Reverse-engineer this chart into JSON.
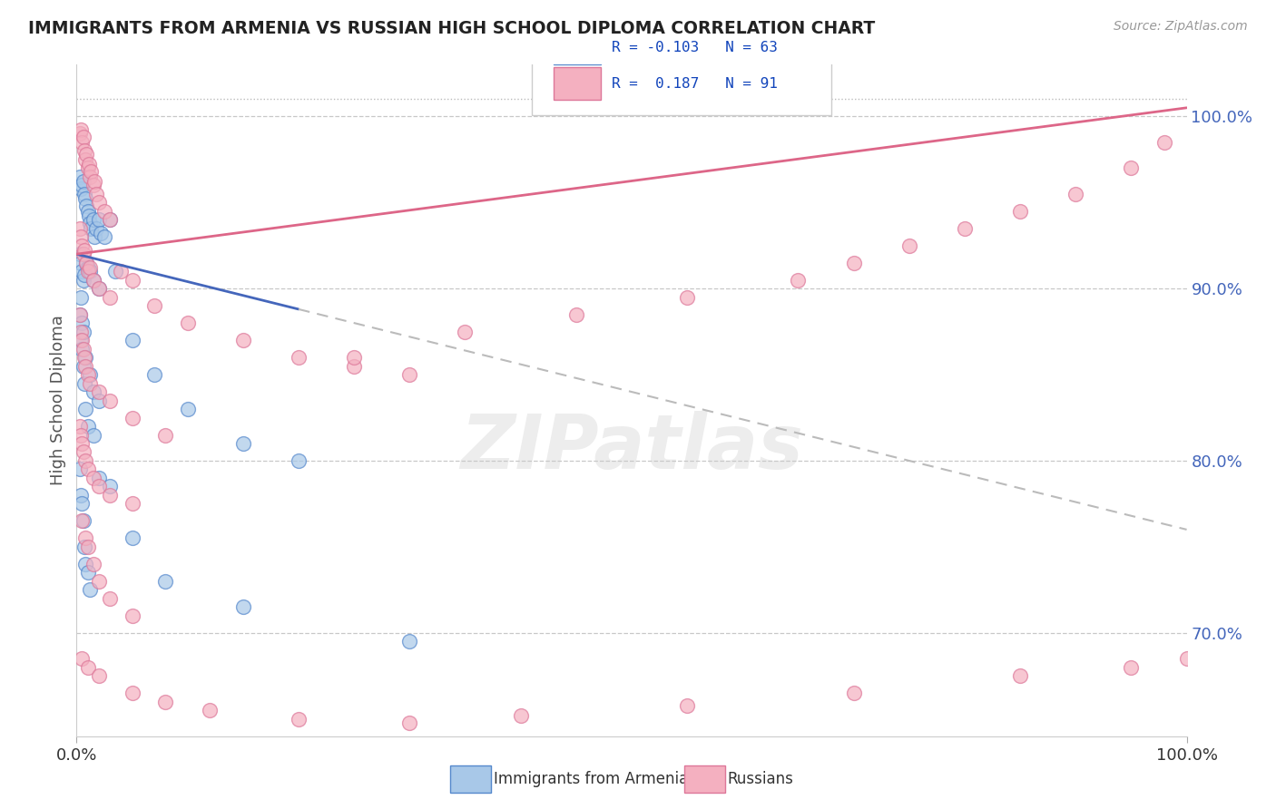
{
  "title": "IMMIGRANTS FROM ARMENIA VS RUSSIAN HIGH SCHOOL DIPLOMA CORRELATION CHART",
  "source": "Source: ZipAtlas.com",
  "ylabel": "High School Diploma",
  "color_blue": "#a8c8e8",
  "color_pink": "#f4b0c0",
  "color_blue_edge": "#5588cc",
  "color_pink_edge": "#dd7799",
  "color_blue_line": "#4466bb",
  "color_pink_line": "#dd6688",
  "color_dashed": "#bbbbbb",
  "watermark": "ZIPatlas",
  "y_ticks": [
    70,
    80,
    90,
    100
  ],
  "y_tick_labels": [
    "70.0%",
    "80.0%",
    "90.0%",
    "100.0%"
  ],
  "legend_text1": "R = -0.103   N = 63",
  "legend_text2": "R =  0.187   N = 91",
  "blue_scatter_x": [
    0.3,
    0.4,
    0.5,
    0.6,
    0.7,
    0.8,
    0.9,
    1.0,
    1.1,
    1.2,
    1.3,
    1.5,
    1.6,
    1.8,
    2.0,
    2.2,
    2.5,
    3.0,
    0.3,
    0.4,
    0.5,
    0.6,
    0.7,
    0.9,
    1.0,
    1.2,
    1.5,
    2.0,
    0.3,
    0.4,
    0.5,
    0.6,
    0.7,
    0.8,
    1.0,
    0.4,
    0.5,
    0.6,
    0.8,
    1.2,
    1.5,
    2.0,
    3.5,
    5.0,
    7.0,
    10.0,
    15.0,
    20.0,
    0.3,
    0.4,
    0.5,
    0.6,
    0.7,
    0.8,
    1.0,
    1.2,
    1.5,
    2.0,
    3.0,
    5.0,
    8.0,
    15.0,
    30.0
  ],
  "blue_scatter_y": [
    96.5,
    95.8,
    96.0,
    96.2,
    95.5,
    95.2,
    94.8,
    94.5,
    94.2,
    93.8,
    93.5,
    94.0,
    93.0,
    93.5,
    94.0,
    93.2,
    93.0,
    94.0,
    92.0,
    91.5,
    91.0,
    90.5,
    90.8,
    91.5,
    91.2,
    91.0,
    90.5,
    90.0,
    88.5,
    87.0,
    86.5,
    85.5,
    84.5,
    83.0,
    82.0,
    89.5,
    88.0,
    87.5,
    86.0,
    85.0,
    84.0,
    83.5,
    91.0,
    87.0,
    85.0,
    83.0,
    81.0,
    80.0,
    79.5,
    78.0,
    77.5,
    76.5,
    75.0,
    74.0,
    73.5,
    72.5,
    81.5,
    79.0,
    78.5,
    75.5,
    73.0,
    71.5,
    69.5
  ],
  "pink_scatter_x": [
    0.3,
    0.4,
    0.5,
    0.6,
    0.7,
    0.8,
    0.9,
    1.0,
    1.1,
    1.2,
    1.3,
    1.5,
    1.6,
    1.8,
    2.0,
    2.5,
    3.0,
    0.3,
    0.4,
    0.5,
    0.6,
    0.7,
    0.9,
    1.0,
    1.2,
    1.5,
    2.0,
    3.0,
    4.0,
    5.0,
    7.0,
    10.0,
    15.0,
    20.0,
    25.0,
    30.0,
    0.3,
    0.4,
    0.5,
    0.6,
    0.7,
    0.8,
    1.0,
    1.2,
    2.0,
    3.0,
    5.0,
    8.0,
    0.3,
    0.4,
    0.5,
    0.6,
    0.8,
    1.0,
    1.5,
    2.0,
    3.0,
    5.0,
    0.5,
    0.8,
    1.0,
    1.5,
    2.0,
    3.0,
    5.0,
    0.5,
    1.0,
    2.0,
    5.0,
    8.0,
    12.0,
    20.0,
    30.0,
    40.0,
    55.0,
    70.0,
    85.0,
    95.0,
    100.0,
    25.0,
    35.0,
    45.0,
    55.0,
    65.0,
    70.0,
    75.0,
    80.0,
    85.0,
    90.0,
    95.0,
    98.0
  ],
  "pink_scatter_y": [
    99.0,
    99.2,
    98.5,
    98.8,
    98.0,
    97.5,
    97.8,
    97.0,
    97.2,
    96.5,
    96.8,
    96.0,
    96.2,
    95.5,
    95.0,
    94.5,
    94.0,
    93.5,
    93.0,
    92.5,
    92.0,
    92.2,
    91.5,
    91.0,
    91.2,
    90.5,
    90.0,
    89.5,
    91.0,
    90.5,
    89.0,
    88.0,
    87.0,
    86.0,
    85.5,
    85.0,
    88.5,
    87.5,
    87.0,
    86.5,
    86.0,
    85.5,
    85.0,
    84.5,
    84.0,
    83.5,
    82.5,
    81.5,
    82.0,
    81.5,
    81.0,
    80.5,
    80.0,
    79.5,
    79.0,
    78.5,
    78.0,
    77.5,
    76.5,
    75.5,
    75.0,
    74.0,
    73.0,
    72.0,
    71.0,
    68.5,
    68.0,
    67.5,
    66.5,
    66.0,
    65.5,
    65.0,
    64.8,
    65.2,
    65.8,
    66.5,
    67.5,
    68.0,
    68.5,
    86.0,
    87.5,
    88.5,
    89.5,
    90.5,
    91.5,
    92.5,
    93.5,
    94.5,
    95.5,
    97.0,
    98.5
  ]
}
